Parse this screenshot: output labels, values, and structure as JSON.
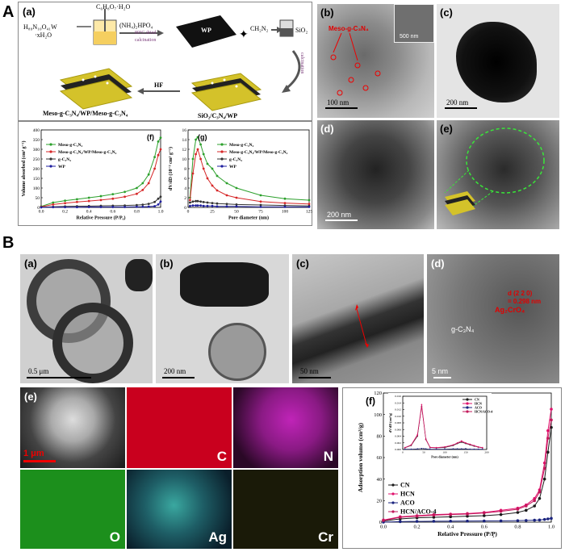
{
  "section_a": {
    "label": "A",
    "panel_a": {
      "label": "(a)",
      "reagent1": "C₆H₈O₇·H₂O",
      "reagent2": "H₈₉N₁₀O₄₁W",
      "reagent2b": "·xH₂O",
      "reagent3": "(NH₄)₂HPO₄",
      "step1_top": "80°C dried",
      "step1_bot": "calcination",
      "wp_label": "WP",
      "reagent4": "CH₂N₂",
      "sio2": "SiO₂",
      "calc": "calcination",
      "hf": "HF",
      "prod1": "Meso-g-C₃N₄/WP/Meso-g-C₃N₄",
      "prod2": "SiO₂/C₃N₄/WP"
    },
    "panel_f": {
      "label": "(f)",
      "ylabel": "Volume absorbed (cm³ g⁻¹)",
      "xlabel": "Relative Pressure (P/P₀)"
    },
    "panel_g": {
      "label": "(g)",
      "ylabel": "dV/dD (10⁻³ cm³ g⁻¹)",
      "xlabel": "Pore diameter (nm)"
    },
    "panel_b": {
      "label": "(b)",
      "ann": "Meso-g-C₃N₄",
      "scale": "100 nm",
      "inset_scale": "500 nm"
    },
    "panel_c": {
      "label": "(c)",
      "scale": "200 nm"
    },
    "panel_d": {
      "label": "(d)",
      "scale": "200 nm"
    },
    "panel_e": {
      "label": "(e)"
    }
  },
  "section_b": {
    "label": "B",
    "panel_a": {
      "label": "(a)",
      "scale": "0.5 μm"
    },
    "panel_b": {
      "label": "(b)",
      "scale": "200 nm"
    },
    "panel_c": {
      "label": "(c)",
      "scale": "50 nm"
    },
    "panel_d": {
      "label": "(d)",
      "ann1": "d (2 2 0)",
      "ann2": "= 0.298 nm",
      "ann3": "Ag₂CrO₄",
      "material": "g-C₃N₄",
      "scale": "5 nm"
    },
    "panel_e": {
      "label": "(e)",
      "scale": "1 μm",
      "maps": [
        {
          "element": "C",
          "color": "#e8162b"
        },
        {
          "element": "N",
          "color": "#c024b8"
        },
        {
          "element": "O",
          "color": "#24b024"
        },
        {
          "element": "Ag",
          "color": "#3aa8a0"
        },
        {
          "element": "Cr",
          "color": "#c8c020"
        }
      ]
    },
    "panel_f": {
      "label": "(f)",
      "ylabel": "Adsorption volume (cm³/g)",
      "xlabel": "Relative Pressure (P/P̥)",
      "inset_ylabel": "dV/dD (cm³/g)",
      "inset_xlabel": "Pore diameter (nm)",
      "legend": [
        "CN",
        "HCN",
        "ACO",
        "HCN/ACO-4"
      ]
    }
  },
  "chart_data": [
    {
      "type": "line",
      "panel": "A(f)",
      "xlabel": "Relative Pressure (P/P₀)",
      "ylabel": "Volume absorbed (cm³ g⁻¹)",
      "xlim": [
        0.0,
        1.0
      ],
      "ylim": [
        0,
        400
      ],
      "xticks": [
        "0.0",
        "0.2",
        "0.4",
        "0.6",
        "0.8",
        "1.0"
      ],
      "yticks": [
        "0",
        "50",
        "100",
        "150",
        "200",
        "250",
        "300",
        "350",
        "400"
      ],
      "legend_position": "top-left",
      "x": [
        0.0,
        0.1,
        0.2,
        0.3,
        0.4,
        0.5,
        0.6,
        0.7,
        0.8,
        0.85,
        0.9,
        0.95,
        0.98,
        1.0
      ],
      "series": [
        {
          "name": "Meso-g-C₃N₄",
          "color": "#2ca02c",
          "values": [
            5,
            25,
            35,
            42,
            50,
            58,
            68,
            80,
            100,
            125,
            170,
            260,
            340,
            360
          ]
        },
        {
          "name": "Meso-g-C₃N₄/WP/Meso-g-C₃N₄",
          "color": "#d62728",
          "values": [
            3,
            15,
            22,
            28,
            33,
            38,
            45,
            55,
            70,
            90,
            125,
            200,
            270,
            300
          ]
        },
        {
          "name": "g-C₃N₄",
          "color": "#333333",
          "values": [
            1,
            3,
            5,
            6,
            7,
            8,
            9,
            10,
            12,
            14,
            18,
            28,
            45,
            55
          ]
        },
        {
          "name": "WP",
          "color": "#1f1f9f",
          "values": [
            0,
            1,
            1,
            1,
            2,
            2,
            2,
            2,
            3,
            3,
            4,
            6,
            15,
            30
          ]
        }
      ]
    },
    {
      "type": "line",
      "panel": "A(g)",
      "xlabel": "Pore diameter (nm)",
      "ylabel": "dV/dD (10⁻³ cm³ g⁻¹)",
      "xlim": [
        0,
        125
      ],
      "ylim": [
        0,
        16
      ],
      "xticks": [
        "0",
        "25",
        "50",
        "75",
        "100",
        "125"
      ],
      "yticks": [
        "0",
        "2",
        "4",
        "6",
        "8",
        "10",
        "12",
        "14",
        "16"
      ],
      "legend_position": "top-right",
      "x": [
        2,
        5,
        8,
        10,
        13,
        16,
        20,
        25,
        30,
        40,
        50,
        75,
        100,
        125
      ],
      "series": [
        {
          "name": "Meso-g-C₃N₄",
          "color": "#2ca02c",
          "values": [
            2,
            10,
            14,
            14.5,
            13,
            11,
            9,
            8,
            6.5,
            5,
            4,
            2.5,
            1.8,
            1.5
          ]
        },
        {
          "name": "Meso-g-C₃N₄/WP/Meso-g-C₃N₄",
          "color": "#d62728",
          "values": [
            1.5,
            7,
            11,
            12,
            10,
            8,
            6,
            4.5,
            3.5,
            2.5,
            2,
            1.2,
            0.9,
            0.7
          ]
        },
        {
          "name": "g-C₃N₄",
          "color": "#333333",
          "values": [
            1,
            1.2,
            1.3,
            1.3,
            1.2,
            1.1,
            1.0,
            0.9,
            0.8,
            0.7,
            0.6,
            0.5,
            0.4,
            0.3
          ]
        },
        {
          "name": "WP",
          "color": "#1f1f9f",
          "values": [
            0.3,
            0.4,
            0.4,
            0.4,
            0.4,
            0.3,
            0.3,
            0.3,
            0.2,
            0.2,
            0.2,
            0.1,
            0.1,
            0.1
          ]
        }
      ]
    },
    {
      "type": "line",
      "panel": "B(f)",
      "xlabel": "Relative Pressure (P/P̥)",
      "ylabel": "Adsorption volume (cm³/g)",
      "xlim": [
        0.0,
        1.0
      ],
      "ylim": [
        0,
        120
      ],
      "xticks": [
        "0.0",
        "0.2",
        "0.4",
        "0.6",
        "0.8",
        "1.0"
      ],
      "yticks": [
        "0",
        "20",
        "40",
        "60",
        "80",
        "100",
        "120"
      ],
      "legend_position": "bottom-left",
      "x": [
        0.0,
        0.1,
        0.2,
        0.3,
        0.4,
        0.5,
        0.6,
        0.7,
        0.8,
        0.85,
        0.9,
        0.93,
        0.96,
        0.98,
        1.0
      ],
      "series": [
        {
          "name": "CN",
          "color": "#1a1a1a",
          "values": [
            1,
            3,
            4,
            4.5,
            5,
            5.5,
            6,
            7,
            9,
            11,
            15,
            22,
            40,
            65,
            88
          ]
        },
        {
          "name": "HCN",
          "color": "#e0106c",
          "values": [
            2,
            5,
            6,
            7,
            7.5,
            8,
            9,
            11,
            13,
            16,
            22,
            30,
            55,
            85,
            105
          ]
        },
        {
          "name": "ACO",
          "color": "#1a237e",
          "values": [
            0,
            0.5,
            0.7,
            0.8,
            0.9,
            1,
            1.1,
            1.2,
            1.4,
            1.6,
            1.8,
            2,
            2.5,
            3,
            3.5
          ]
        },
        {
          "name": "HCN/ACO-4",
          "color": "#c2185b",
          "values": [
            1.5,
            4.5,
            5.5,
            6.5,
            7,
            7.5,
            8.5,
            10,
            12,
            15,
            20,
            28,
            50,
            78,
            95
          ]
        }
      ]
    },
    {
      "type": "line",
      "panel": "B(f) inset",
      "xlabel": "Pore diameter (nm)",
      "ylabel": "dV/dD (cm³/g)",
      "xlim": [
        0,
        200
      ],
      "ylim": [
        0,
        0.016
      ],
      "xticks": [
        "0",
        "50",
        "100",
        "150",
        "200"
      ],
      "yticks": [
        "0.000",
        "0.002",
        "0.004",
        "0.006",
        "0.008",
        "0.010",
        "0.012",
        "0.014",
        "0.016"
      ],
      "x": [
        5,
        20,
        35,
        45,
        55,
        65,
        80,
        100,
        120,
        130,
        140,
        150,
        160,
        170,
        180,
        190
      ],
      "series": [
        {
          "name": "CN",
          "color": "#1a1a1a",
          "values": [
            0.0005,
            0.0012,
            0.004,
            0.013,
            0.003,
            0.0006,
            0.0005,
            0.0006,
            0.0012,
            0.0018,
            0.0022,
            0.0018,
            0.0014,
            0.001,
            0.0007,
            0.0005
          ]
        },
        {
          "name": "HCN",
          "color": "#e0106c",
          "values": [
            0.0006,
            0.0014,
            0.0045,
            0.0135,
            0.0032,
            0.0007,
            0.0006,
            0.0008,
            0.0014,
            0.002,
            0.0026,
            0.002,
            0.0016,
            0.0012,
            0.0008,
            0.0006
          ]
        },
        {
          "name": "ACO",
          "color": "#1a237e",
          "values": [
            0.0001,
            0.0001,
            0.0002,
            0.0003,
            0.0002,
            0.0001,
            0.0001,
            0.0001,
            0.0002,
            0.0002,
            0.0002,
            0.0002,
            0.0001,
            0.0001,
            0.0001,
            0.0001
          ]
        },
        {
          "name": "HCN/ACO-4",
          "color": "#c2185b",
          "values": [
            0.0005,
            0.0013,
            0.0042,
            0.0128,
            0.003,
            0.0006,
            0.0005,
            0.0007,
            0.0013,
            0.0019,
            0.0024,
            0.0019,
            0.0015,
            0.0011,
            0.0007,
            0.0005
          ]
        }
      ]
    }
  ]
}
